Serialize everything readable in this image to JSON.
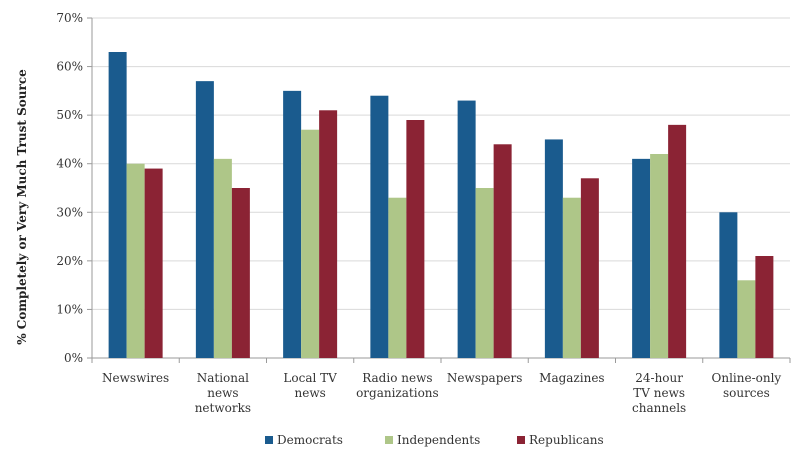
{
  "chart_data": {
    "type": "bar",
    "categories": [
      [
        "Newswires"
      ],
      [
        "National",
        "news",
        "networks"
      ],
      [
        "Local TV",
        "news"
      ],
      [
        "Radio news",
        "organizations"
      ],
      [
        "Newspapers"
      ],
      [
        "Magazines"
      ],
      [
        "24-hour",
        "TV news",
        "channels"
      ],
      [
        "Online-only",
        "sources"
      ]
    ],
    "series": [
      {
        "name": "Democrats",
        "color": "#1a5b8e",
        "values": [
          63,
          57,
          55,
          54,
          53,
          45,
          41,
          30
        ]
      },
      {
        "name": "Independents",
        "color": "#aec688",
        "values": [
          40,
          41,
          47,
          33,
          35,
          33,
          42,
          16
        ]
      },
      {
        "name": "Republicans",
        "color": "#8b2334",
        "values": [
          39,
          35,
          51,
          49,
          44,
          37,
          48,
          21
        ]
      }
    ],
    "ylabel": "% Completely or Very Much Trust Source",
    "ylim": [
      0,
      70
    ],
    "yticks": [
      "0%",
      "10%",
      "20%",
      "30%",
      "40%",
      "50%",
      "60%",
      "70%"
    ],
    "grid": true,
    "legend": "bottom"
  }
}
